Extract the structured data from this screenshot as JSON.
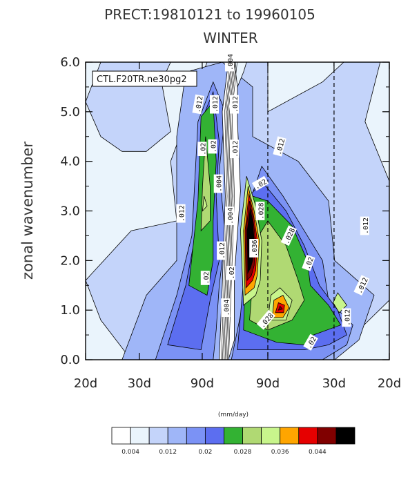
{
  "title_line1": "PRECT:19810121 to 19960105",
  "title_line2": "WINTER",
  "chart_data": {
    "type": "heatmap",
    "title": "PRECT:19810121 to 19960105",
    "subtitle": "WINTER",
    "ylabel": "zonal wavenumber",
    "ylim": [
      0,
      6
    ],
    "yticks": [
      "0.0",
      "1.0",
      "2.0",
      "3.0",
      "4.0",
      "5.0",
      "6.0"
    ],
    "xticks": [
      "20d",
      "30d",
      "90d",
      "90d",
      "30d",
      "20d"
    ],
    "model_label": "CTL.F20TR.ne30pg2",
    "colorbar_units": "(mm/day)",
    "colorbar_labels": [
      "0.004",
      "0.012",
      "0.02",
      "0.028",
      "0.036",
      "0.044"
    ],
    "levels": [
      0.004,
      0.008,
      0.012,
      0.016,
      0.02,
      0.024,
      0.028,
      0.032,
      0.036,
      0.04,
      0.044,
      0.048
    ],
    "colors": [
      "#ffffff",
      "#eaf4fc",
      "#c4d4fa",
      "#9fb6f8",
      "#7b92f5",
      "#5c6ef0",
      "#33b233",
      "#b0d973",
      "#c8f58c",
      "#ffa500",
      "#e60000",
      "#800000",
      "#000000"
    ],
    "contour_labels": [
      {
        "text": ".004",
        "fx": 0.475,
        "fy": 6.0,
        "rot": -90
      },
      {
        "text": ".012",
        "fx": 0.372,
        "fy": 5.15,
        "rot": -80
      },
      {
        "text": ".012",
        "fx": 0.425,
        "fy": 5.15,
        "rot": -90
      },
      {
        "text": ".012",
        "fx": 0.491,
        "fy": 5.15,
        "rot": -90
      },
      {
        "text": ".012",
        "fx": 0.491,
        "fy": 4.25,
        "rot": -90
      },
      {
        "text": ".012",
        "fx": 0.64,
        "fy": 4.3,
        "rot": -75
      },
      {
        "text": ".012",
        "fx": 0.315,
        "fy": 2.95,
        "rot": -90
      },
      {
        "text": ".012",
        "fx": 0.92,
        "fy": 2.7,
        "rot": -90
      },
      {
        "text": ".012",
        "fx": 0.448,
        "fy": 2.2,
        "rot": -90
      },
      {
        "text": ".012",
        "fx": 0.91,
        "fy": 1.5,
        "rot": -65
      },
      {
        "text": ".012",
        "fx": 0.86,
        "fy": 0.85,
        "rot": -90
      },
      {
        "text": ".004",
        "fx": 0.438,
        "fy": 3.55,
        "rot": -90
      },
      {
        "text": ".004",
        "fx": 0.475,
        "fy": 2.9,
        "rot": -90
      },
      {
        "text": ".004",
        "fx": 0.462,
        "fy": 1.05,
        "rot": -90
      },
      {
        "text": ".02",
        "fx": 0.385,
        "fy": 4.25,
        "rot": -90
      },
      {
        "text": ".02",
        "fx": 0.419,
        "fy": 4.3,
        "rot": -90
      },
      {
        "text": ".02",
        "fx": 0.395,
        "fy": 1.65,
        "rot": -90
      },
      {
        "text": ".02",
        "fx": 0.479,
        "fy": 1.75,
        "rot": -90
      },
      {
        "text": ".02",
        "fx": 0.576,
        "fy": 3.55,
        "rot": -30
      },
      {
        "text": ".028",
        "fx": 0.576,
        "fy": 3.0,
        "rot": -90
      },
      {
        "text": ".036",
        "fx": 0.555,
        "fy": 2.25,
        "rot": -90
      },
      {
        "text": ".028",
        "fx": 0.67,
        "fy": 2.5,
        "rot": -65
      },
      {
        "text": ".02",
        "fx": 0.735,
        "fy": 1.95,
        "rot": -70
      },
      {
        "text": ".028",
        "fx": 0.595,
        "fy": 0.8,
        "rot": -50
      },
      {
        "text": ".02",
        "fx": 0.742,
        "fy": 0.35,
        "rot": -60
      }
    ],
    "dashed_x": [
      0.6,
      0.818
    ],
    "grid": false
  }
}
